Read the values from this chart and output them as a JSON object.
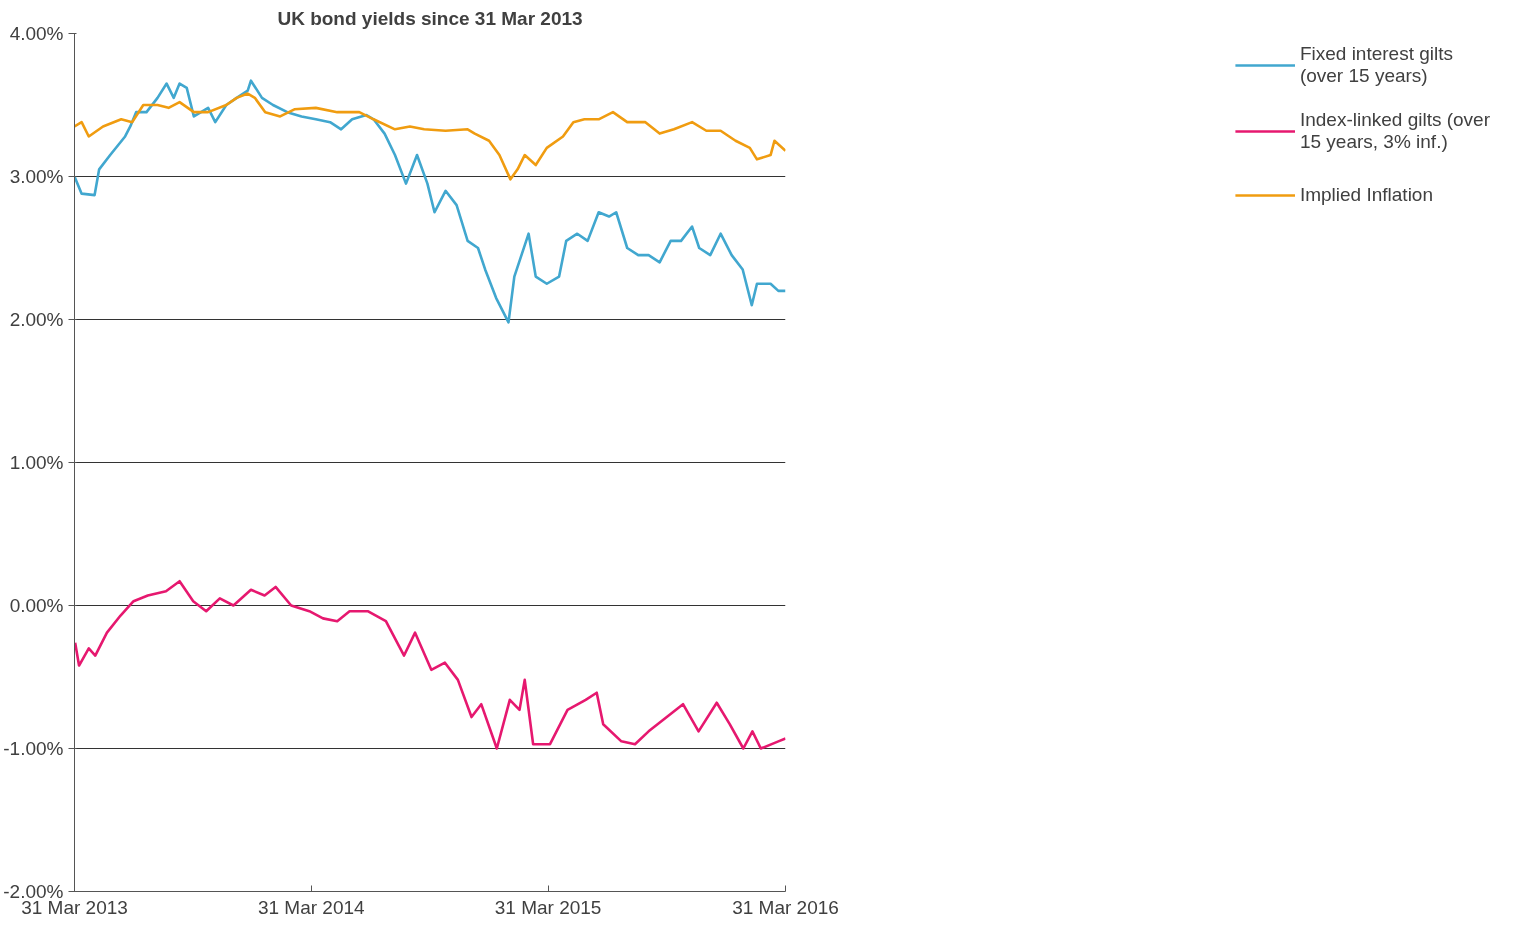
{
  "chart_data": {
    "type": "line",
    "title": "UK bond yields since 31 Mar 2013",
    "xlim": [
      "2013-03-31",
      "2016-03-31"
    ],
    "xticks": [
      {
        "value": "2013-03-31",
        "label": "31 Mar 2013"
      },
      {
        "value": "2014-03-31",
        "label": "31 Mar 2014"
      },
      {
        "value": "2015-03-31",
        "label": "31 Mar 2015"
      },
      {
        "value": "2016-03-31",
        "label": "31 Mar 2016"
      }
    ],
    "ylim": [
      -2,
      4
    ],
    "yticks": [
      {
        "value": -2,
        "label": "-2.00%"
      },
      {
        "value": -1,
        "label": "-1.00%"
      },
      {
        "value": 0,
        "label": "0.00%"
      },
      {
        "value": 1,
        "label": "1.00%"
      },
      {
        "value": 2,
        "label": "2.00%"
      },
      {
        "value": 3,
        "label": "3.00%"
      },
      {
        "value": 4,
        "label": "4.00%"
      }
    ],
    "grid": "y",
    "legend": "right",
    "line_style": "solid",
    "series": [
      {
        "name": "Fixed interest gilts (over 15 years)",
        "color": "#41a7cf",
        "x": [
          "2013-03-31",
          "2013-04-11",
          "2013-05-01",
          "2013-05-08",
          "2013-05-25",
          "2013-06-17",
          "2013-06-25",
          "2013-07-04",
          "2013-07-20",
          "2013-08-06",
          "2013-08-20",
          "2013-08-31",
          "2013-09-09",
          "2013-09-20",
          "2013-10-01",
          "2013-10-23",
          "2013-11-03",
          "2013-11-20",
          "2013-12-06",
          "2013-12-23",
          "2013-12-28",
          "2014-01-14",
          "2014-01-31",
          "2014-02-22",
          "2014-03-16",
          "2014-04-07",
          "2014-04-29",
          "2014-05-16",
          "2014-06-02",
          "2014-06-24",
          "2014-07-05",
          "2014-07-22",
          "2014-08-07",
          "2014-08-24",
          "2014-09-10",
          "2014-09-26",
          "2014-10-07",
          "2014-10-24",
          "2014-11-10",
          "2014-11-27",
          "2014-12-13",
          "2014-12-24",
          "2015-01-10",
          "2015-01-29",
          "2015-02-07",
          "2015-02-18",
          "2015-03-01",
          "2015-03-12",
          "2015-03-29",
          "2015-04-17",
          "2015-04-28",
          "2015-05-15",
          "2015-05-31",
          "2015-06-17",
          "2015-07-03",
          "2015-07-14",
          "2015-07-31",
          "2015-08-17",
          "2015-09-02",
          "2015-09-19",
          "2015-10-06",
          "2015-10-22",
          "2015-11-08",
          "2015-11-19",
          "2015-12-06",
          "2015-12-22",
          "2016-01-08",
          "2016-01-25",
          "2016-02-08",
          "2016-02-16",
          "2016-03-08",
          "2016-03-20",
          "2016-03-31"
        ],
        "values": [
          3.0,
          2.88,
          2.87,
          3.05,
          3.15,
          3.28,
          3.35,
          3.45,
          3.45,
          3.55,
          3.65,
          3.55,
          3.65,
          3.62,
          3.42,
          3.48,
          3.38,
          3.5,
          3.55,
          3.6,
          3.67,
          3.55,
          3.5,
          3.45,
          3.42,
          3.4,
          3.38,
          3.33,
          3.4,
          3.43,
          3.4,
          3.3,
          3.15,
          2.95,
          3.15,
          2.95,
          2.75,
          2.9,
          2.8,
          2.55,
          2.5,
          2.35,
          2.15,
          1.98,
          2.3,
          2.45,
          2.6,
          2.3,
          2.25,
          2.3,
          2.55,
          2.6,
          2.55,
          2.75,
          2.72,
          2.75,
          2.5,
          2.45,
          2.45,
          2.4,
          2.55,
          2.55,
          2.65,
          2.5,
          2.45,
          2.6,
          2.45,
          2.35,
          2.1,
          2.25,
          2.25,
          2.2,
          2.2
        ]
      },
      {
        "name": "Index-linked gilts (over 15 years, 3% inf.)",
        "color": "#e6186f",
        "x": [
          "2013-04-01",
          "2013-04-07",
          "2013-04-22",
          "2013-05-02",
          "2013-05-20",
          "2013-06-10",
          "2013-06-30",
          "2013-07-22",
          "2013-08-19",
          "2013-09-09",
          "2013-09-30",
          "2013-10-20",
          "2013-11-10",
          "2013-12-01",
          "2013-12-28",
          "2014-01-18",
          "2014-02-04",
          "2014-02-28",
          "2014-03-28",
          "2014-04-18",
          "2014-05-10",
          "2014-05-29",
          "2014-06-26",
          "2014-07-24",
          "2014-08-21",
          "2014-09-07",
          "2014-10-02",
          "2014-10-23",
          "2014-11-12",
          "2014-12-03",
          "2014-12-18",
          "2015-01-11",
          "2015-01-31",
          "2015-02-15",
          "2015-02-23",
          "2015-03-08",
          "2015-04-03",
          "2015-04-30",
          "2015-05-28",
          "2015-06-14",
          "2015-06-24",
          "2015-07-22",
          "2015-08-12",
          "2015-09-02",
          "2015-09-30",
          "2015-10-25",
          "2015-11-18",
          "2015-12-16",
          "2016-01-05",
          "2016-01-26",
          "2016-02-09",
          "2016-02-22",
          "2016-03-20",
          "2016-03-31"
        ],
        "values": [
          -0.26,
          -0.42,
          -0.3,
          -0.35,
          -0.19,
          -0.07,
          0.03,
          0.07,
          0.1,
          0.17,
          0.03,
          -0.04,
          0.05,
          0.0,
          0.11,
          0.07,
          0.13,
          0.0,
          -0.04,
          -0.09,
          -0.11,
          -0.04,
          -0.04,
          -0.11,
          -0.35,
          -0.19,
          -0.45,
          -0.4,
          -0.52,
          -0.78,
          -0.69,
          -1.0,
          -0.66,
          -0.73,
          -0.52,
          -0.97,
          -0.97,
          -0.73,
          -0.66,
          -0.61,
          -0.83,
          -0.95,
          -0.97,
          -0.88,
          -0.78,
          -0.69,
          -0.88,
          -0.68,
          -0.83,
          -1.0,
          -0.88,
          -1.0,
          -0.95,
          -0.93
        ]
      },
      {
        "name": "Implied Inflation",
        "color": "#f09c10",
        "x": [
          "2013-03-31",
          "2013-04-11",
          "2013-04-22",
          "2013-05-14",
          "2013-06-11",
          "2013-06-28",
          "2013-07-15",
          "2013-08-06",
          "2013-08-23",
          "2013-09-09",
          "2013-10-01",
          "2013-10-23",
          "2013-11-20",
          "2013-12-06",
          "2013-12-23",
          "2014-01-03",
          "2014-01-19",
          "2014-02-11",
          "2014-03-05",
          "2014-04-07",
          "2014-05-10",
          "2014-06-13",
          "2014-07-05",
          "2014-08-07",
          "2014-08-30",
          "2014-09-21",
          "2014-10-24",
          "2014-11-27",
          "2014-12-08",
          "2014-12-30",
          "2015-01-15",
          "2015-02-01",
          "2015-02-12",
          "2015-02-23",
          "2015-03-12",
          "2015-03-29",
          "2015-04-23",
          "2015-05-09",
          "2015-05-26",
          "2015-06-17",
          "2015-07-09",
          "2015-07-31",
          "2015-08-28",
          "2015-09-19",
          "2015-10-11",
          "2015-11-08",
          "2015-11-30",
          "2015-12-22",
          "2016-01-14",
          "2016-02-05",
          "2016-02-16",
          "2016-03-08",
          "2016-03-14",
          "2016-03-31"
        ],
        "values": [
          3.35,
          3.38,
          3.28,
          3.35,
          3.4,
          3.38,
          3.5,
          3.5,
          3.48,
          3.52,
          3.45,
          3.45,
          3.5,
          3.55,
          3.58,
          3.55,
          3.45,
          3.42,
          3.47,
          3.48,
          3.45,
          3.45,
          3.4,
          3.33,
          3.35,
          3.33,
          3.32,
          3.33,
          3.3,
          3.25,
          3.15,
          2.98,
          3.05,
          3.15,
          3.08,
          3.2,
          3.28,
          3.38,
          3.4,
          3.4,
          3.45,
          3.38,
          3.38,
          3.3,
          3.33,
          3.38,
          3.32,
          3.32,
          3.25,
          3.2,
          3.12,
          3.15,
          3.25,
          3.18
        ]
      }
    ]
  }
}
